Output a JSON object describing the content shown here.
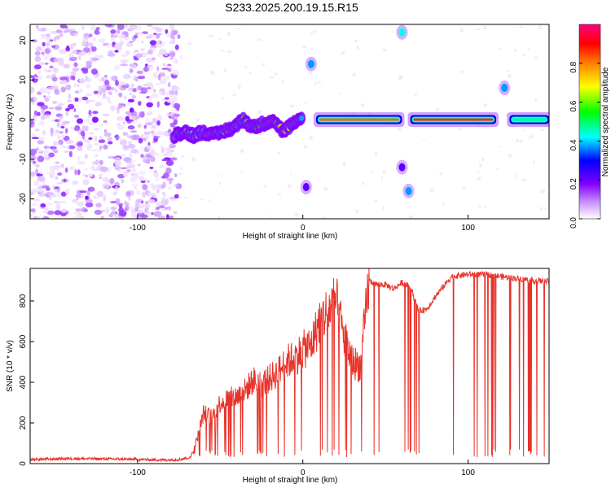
{
  "title": "S233.2025.200.19.15.R15",
  "colors": {
    "snr_line": "#e8332a",
    "frame": "#000000",
    "colormap": [
      "#ffffff",
      "#cc99ff",
      "#7f00ff",
      "#0000ff",
      "#00ffff",
      "#00ff00",
      "#ffff00",
      "#ff8000",
      "#ff0000",
      "#ff0080"
    ]
  },
  "chart_data": [
    {
      "type": "heatmap",
      "xlabel": "Height of straight line (km)",
      "ylabel": "Frequency (Hz)",
      "xlim": [
        -165,
        149
      ],
      "ylim": [
        -25,
        24
      ],
      "xticks": [
        -100,
        0,
        100
      ],
      "yticks": [
        -20,
        -10,
        0,
        10,
        20
      ],
      "grid": false,
      "colorbar": {
        "label": "Normalized spectral amplitude",
        "range": [
          0.0,
          1.0
        ],
        "ticks": [
          "0.0",
          "0.2",
          "0.4",
          "0.6",
          "0.8"
        ]
      },
      "noise_region": {
        "x": [
          -165,
          -75
        ],
        "y": [
          -25,
          24
        ]
      },
      "trace": {
        "x": [
          -78,
          -72,
          -66,
          -60,
          -54,
          -48,
          -42,
          -36,
          -30,
          -24,
          -18,
          -12,
          -6,
          0
        ],
        "y": [
          -4,
          -3,
          -4,
          -3,
          -4,
          -3,
          -2,
          0,
          -2,
          -1,
          0,
          -3,
          -1,
          0
        ]
      },
      "bands": [
        {
          "x": [
            8,
            60
          ],
          "y": 0,
          "amplitude": 0.8
        },
        {
          "x": [
            65,
            117
          ],
          "y": 0,
          "amplitude": 0.85
        },
        {
          "x": [
            125,
            149
          ],
          "y": 0,
          "amplitude": 0.5
        }
      ],
      "spots": [
        {
          "x": 5,
          "y": 14,
          "amplitude": 0.3
        },
        {
          "x": 60,
          "y": 22,
          "amplitude": 0.35
        },
        {
          "x": 64,
          "y": -18,
          "amplitude": 0.3
        },
        {
          "x": 122,
          "y": 8,
          "amplitude": 0.3
        },
        {
          "x": 2,
          "y": -17,
          "amplitude": 0.15
        },
        {
          "x": 60,
          "y": -12,
          "amplitude": 0.15
        }
      ]
    },
    {
      "type": "line",
      "xlabel": "Height of straight line (km)",
      "ylabel": "SNR (10 * v/v)",
      "xlim": [
        -165,
        149
      ],
      "ylim": [
        0,
        960
      ],
      "xticks": [
        -100,
        0,
        100
      ],
      "yticks": [
        0,
        200,
        400,
        600,
        800
      ],
      "grid": false,
      "series": [
        {
          "x": [
            -165,
            -140,
            -110,
            -85,
            -75,
            -68,
            -64,
            -60,
            -55,
            -50,
            -45,
            -40,
            -35,
            -30,
            -25,
            -20,
            -15,
            -10,
            -5,
            0,
            5,
            10,
            15,
            20,
            25,
            30,
            35,
            40,
            45,
            50,
            55,
            60,
            65,
            70,
            75,
            80,
            85,
            90,
            100,
            110,
            120,
            130,
            140,
            149
          ],
          "values": [
            20,
            25,
            22,
            18,
            20,
            30,
            120,
            250,
            230,
            300,
            320,
            330,
            360,
            410,
            390,
            420,
            450,
            500,
            520,
            560,
            580,
            700,
            750,
            800,
            620,
            500,
            480,
            900,
            880,
            880,
            860,
            890,
            870,
            750,
            760,
            820,
            870,
            920,
            930,
            930,
            920,
            910,
            900,
            895
          ]
        }
      ]
    }
  ]
}
